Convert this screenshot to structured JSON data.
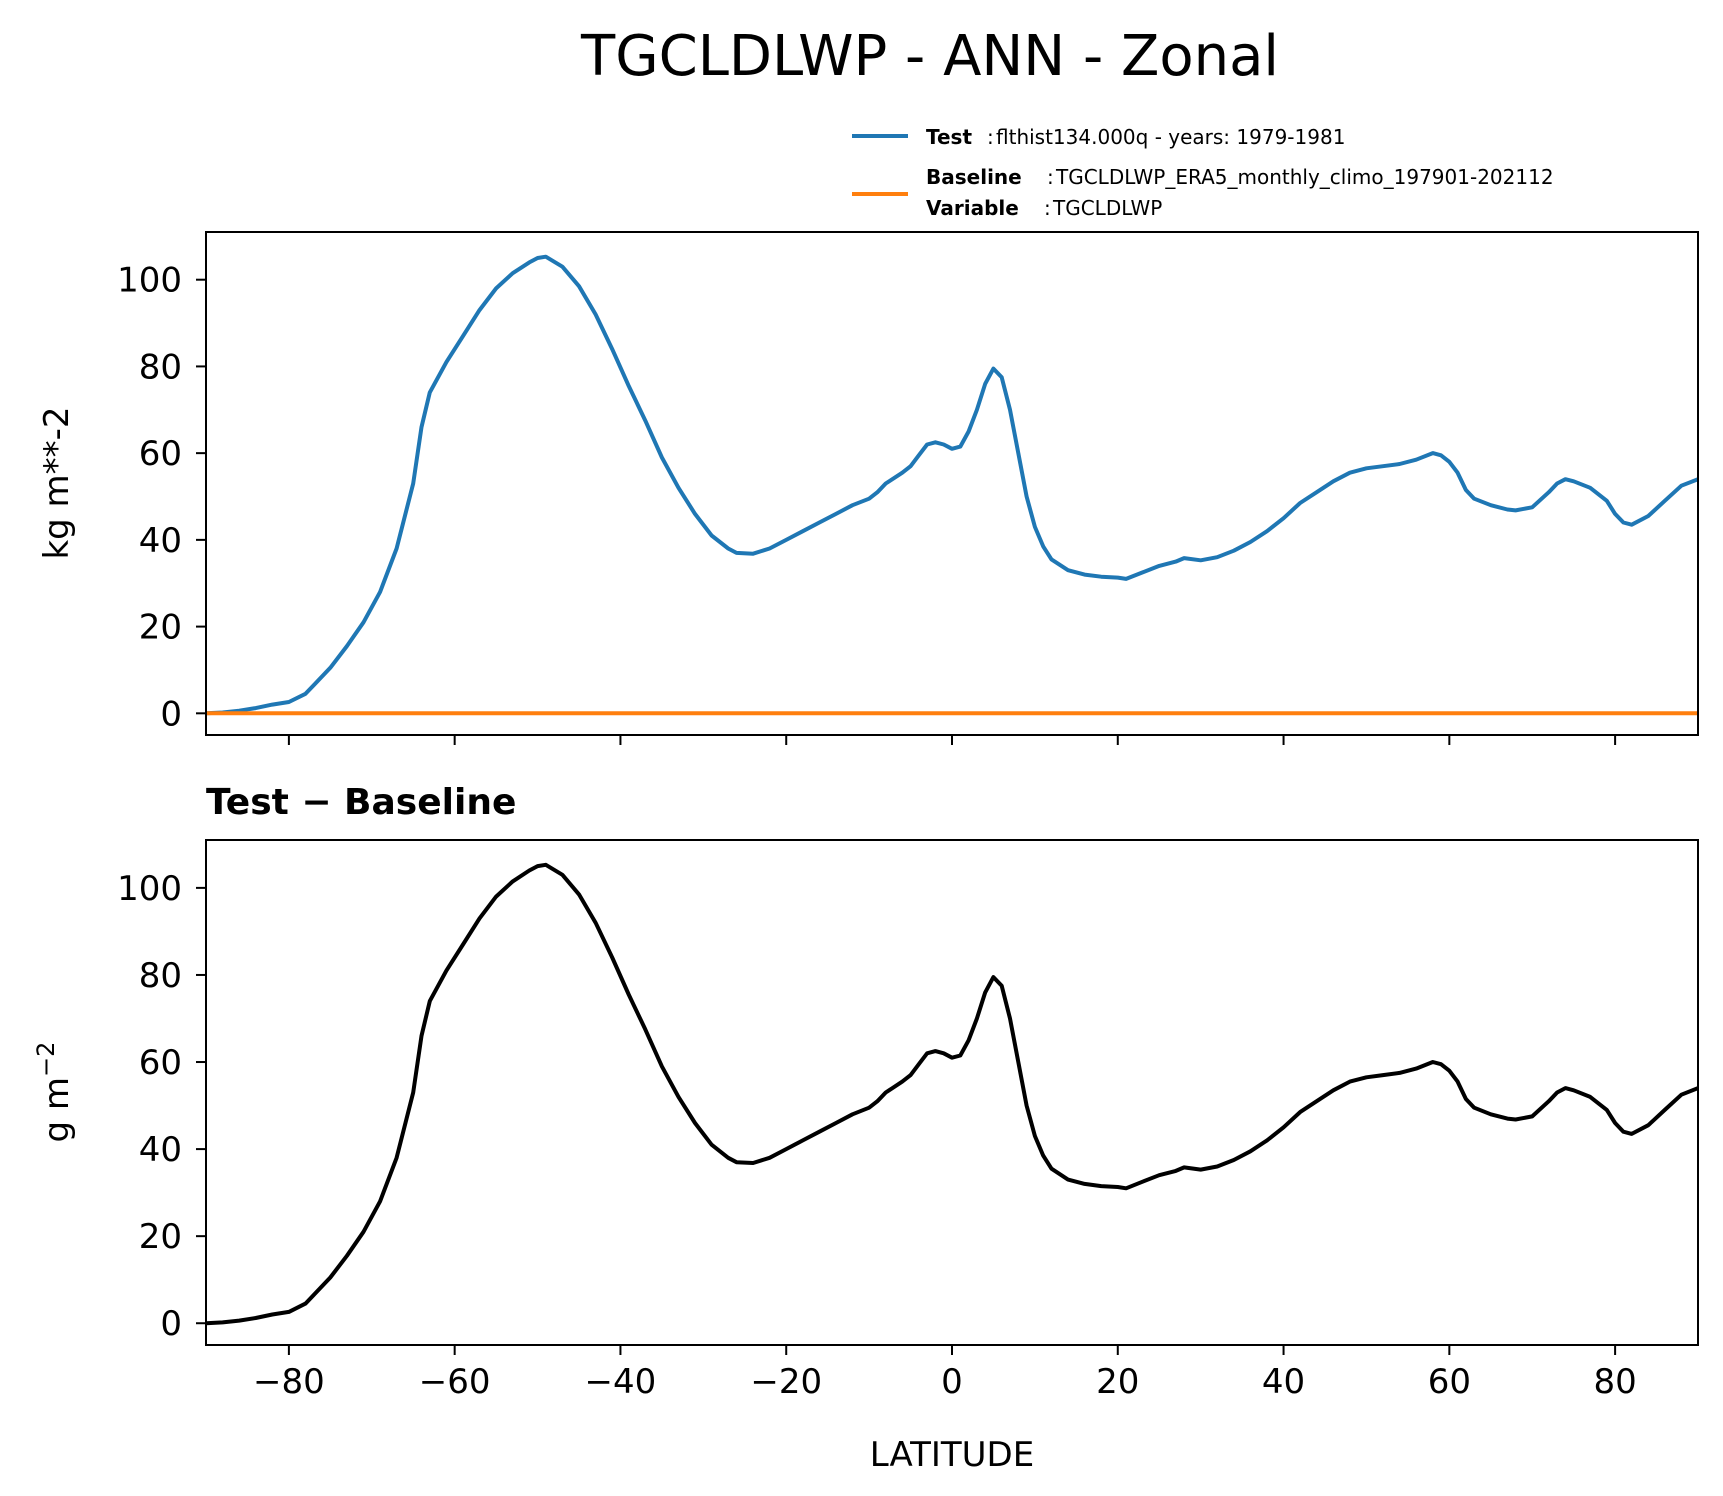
{
  "figure": {
    "title": "TGCLDLWP - ANN - Zonal"
  },
  "legend": {
    "test_key": "Test",
    "test_value": "flthist134.000q - years: 1979-1981",
    "baseline_key": "Baseline",
    "baseline_value": "TGCLDLWP_ERA5_monthly_climo_197901-202112",
    "variable_key": "Variable",
    "variable_value": "TGCLDLWP"
  },
  "top_panel": {
    "ylabel": "kg m**-2",
    "ylim": [
      -5,
      111
    ],
    "yticks": [
      "0",
      "20",
      "40",
      "60",
      "80",
      "100"
    ],
    "ytick_values": [
      0,
      20,
      40,
      60,
      80,
      100
    ]
  },
  "bottom_panel": {
    "title": "Test − Baseline",
    "ylabel_main": "g m",
    "ylabel_sup": "−2",
    "ylim": [
      -5,
      111
    ],
    "yticks": [
      "0",
      "20",
      "40",
      "60",
      "80",
      "100"
    ],
    "ytick_values": [
      0,
      20,
      40,
      60,
      80,
      100
    ]
  },
  "x_axis": {
    "label": "LATITUDE",
    "xlim": [
      -90,
      90
    ],
    "ticks": [
      "−80",
      "−60",
      "−40",
      "−20",
      "0",
      "20",
      "40",
      "60",
      "80"
    ],
    "tick_values": [
      -80,
      -60,
      -40,
      -20,
      0,
      20,
      40,
      60,
      80
    ]
  },
  "colors": {
    "test": "#1f77b4",
    "baseline": "#ff7f0e",
    "difference": "#000000"
  },
  "chart_data": [
    {
      "type": "line",
      "title": "TGCLDLWP - ANN - Zonal",
      "xlabel": "",
      "ylabel": "kg m**-2",
      "xlim": [
        -90,
        90
      ],
      "ylim": [
        -5,
        111
      ],
      "series": [
        {
          "name": "Test",
          "x": [
            -90,
            -88,
            -86,
            -84,
            -82,
            -80,
            -78,
            -77,
            -75,
            -73,
            -71,
            -69,
            -67,
            -65,
            -64,
            -63,
            -61,
            -59,
            -57,
            -55,
            -53,
            -51,
            -50,
            -49,
            -47,
            -45,
            -43,
            -41,
            -39,
            -37,
            -35,
            -33,
            -31,
            -29,
            -27,
            -26,
            -24,
            -22,
            -20,
            -18,
            -16,
            -14,
            -12,
            -10,
            -9,
            -8,
            -6,
            -5,
            -4,
            -3,
            -2,
            -1,
            0,
            1,
            2,
            3,
            4,
            5,
            6,
            7,
            8,
            9,
            10,
            11,
            12,
            14,
            16,
            18,
            20,
            21,
            23,
            25,
            27,
            28,
            30,
            32,
            34,
            36,
            38,
            40,
            42,
            44,
            46,
            48,
            50,
            52,
            54,
            56,
            58,
            59,
            60,
            61,
            62,
            63,
            65,
            67,
            68,
            70,
            72,
            73,
            74,
            75,
            77,
            79,
            80,
            81,
            82,
            84,
            86,
            88,
            90
          ],
          "values": [
            0,
            0.2,
            0.6,
            1.2,
            2.0,
            2.6,
            4.5,
            6.5,
            10.5,
            15.5,
            21.0,
            28.0,
            38.0,
            53.0,
            66.0,
            74.0,
            81.0,
            87.0,
            93.0,
            98.0,
            101.5,
            104.0,
            105.0,
            105.3,
            103.0,
            98.5,
            92.0,
            84.0,
            75.5,
            67.5,
            59.0,
            52.0,
            46.0,
            41.0,
            38.0,
            37.0,
            36.8,
            38.0,
            40.0,
            42.0,
            44.0,
            46.0,
            48.0,
            49.5,
            51.0,
            53.0,
            55.5,
            57.0,
            59.5,
            62.0,
            62.5,
            62.0,
            61.0,
            61.5,
            65.0,
            70.0,
            76.0,
            79.5,
            77.5,
            70.0,
            60.0,
            50.0,
            43.0,
            38.5,
            35.5,
            33.0,
            32.0,
            31.5,
            31.3,
            31.0,
            32.5,
            34.0,
            35.0,
            35.8,
            35.3,
            36.0,
            37.5,
            39.5,
            42.0,
            45.0,
            48.5,
            51.0,
            53.5,
            55.5,
            56.5,
            57.0,
            57.5,
            58.5,
            60.0,
            59.5,
            58.0,
            55.5,
            51.5,
            49.5,
            48.0,
            47.0,
            46.8,
            47.5,
            51.0,
            53.0,
            54.0,
            53.5,
            52.0,
            49.0,
            46.0,
            44.0,
            43.5,
            45.5,
            49.0,
            52.5,
            54.0
          ]
        },
        {
          "name": "Baseline",
          "x": [
            -90,
            -60,
            -30,
            0,
            30,
            60,
            90
          ],
          "values": [
            0,
            0,
            0,
            0,
            0,
            0,
            0
          ]
        }
      ]
    },
    {
      "type": "line",
      "title": "Test − Baseline",
      "xlabel": "LATITUDE",
      "ylabel": "g m−2",
      "xlim": [
        -90,
        90
      ],
      "ylim": [
        -5,
        111
      ],
      "series": [
        {
          "name": "Test − Baseline",
          "x": [
            -90,
            -88,
            -86,
            -84,
            -82,
            -80,
            -78,
            -77,
            -75,
            -73,
            -71,
            -69,
            -67,
            -65,
            -64,
            -63,
            -61,
            -59,
            -57,
            -55,
            -53,
            -51,
            -50,
            -49,
            -47,
            -45,
            -43,
            -41,
            -39,
            -37,
            -35,
            -33,
            -31,
            -29,
            -27,
            -26,
            -24,
            -22,
            -20,
            -18,
            -16,
            -14,
            -12,
            -10,
            -9,
            -8,
            -6,
            -5,
            -4,
            -3,
            -2,
            -1,
            0,
            1,
            2,
            3,
            4,
            5,
            6,
            7,
            8,
            9,
            10,
            11,
            12,
            14,
            16,
            18,
            20,
            21,
            23,
            25,
            27,
            28,
            30,
            32,
            34,
            36,
            38,
            40,
            42,
            44,
            46,
            48,
            50,
            52,
            54,
            56,
            58,
            59,
            60,
            61,
            62,
            63,
            65,
            67,
            68,
            70,
            72,
            73,
            74,
            75,
            77,
            79,
            80,
            81,
            82,
            84,
            86,
            88,
            90
          ],
          "values": [
            0,
            0.2,
            0.6,
            1.2,
            2.0,
            2.6,
            4.5,
            6.5,
            10.5,
            15.5,
            21.0,
            28.0,
            38.0,
            53.0,
            66.0,
            74.0,
            81.0,
            87.0,
            93.0,
            98.0,
            101.5,
            104.0,
            105.0,
            105.3,
            103.0,
            98.5,
            92.0,
            84.0,
            75.5,
            67.5,
            59.0,
            52.0,
            46.0,
            41.0,
            38.0,
            37.0,
            36.8,
            38.0,
            40.0,
            42.0,
            44.0,
            46.0,
            48.0,
            49.5,
            51.0,
            53.0,
            55.5,
            57.0,
            59.5,
            62.0,
            62.5,
            62.0,
            61.0,
            61.5,
            65.0,
            70.0,
            76.0,
            79.5,
            77.5,
            70.0,
            60.0,
            50.0,
            43.0,
            38.5,
            35.5,
            33.0,
            32.0,
            31.5,
            31.3,
            31.0,
            32.5,
            34.0,
            35.0,
            35.8,
            35.3,
            36.0,
            37.5,
            39.5,
            42.0,
            45.0,
            48.5,
            51.0,
            53.5,
            55.5,
            56.5,
            57.0,
            57.5,
            58.5,
            60.0,
            59.5,
            58.0,
            55.5,
            51.5,
            49.5,
            48.0,
            47.0,
            46.8,
            47.5,
            51.0,
            53.0,
            54.0,
            53.5,
            52.0,
            49.0,
            46.0,
            44.0,
            43.5,
            45.5,
            49.0,
            52.5,
            54.0
          ]
        }
      ]
    }
  ]
}
